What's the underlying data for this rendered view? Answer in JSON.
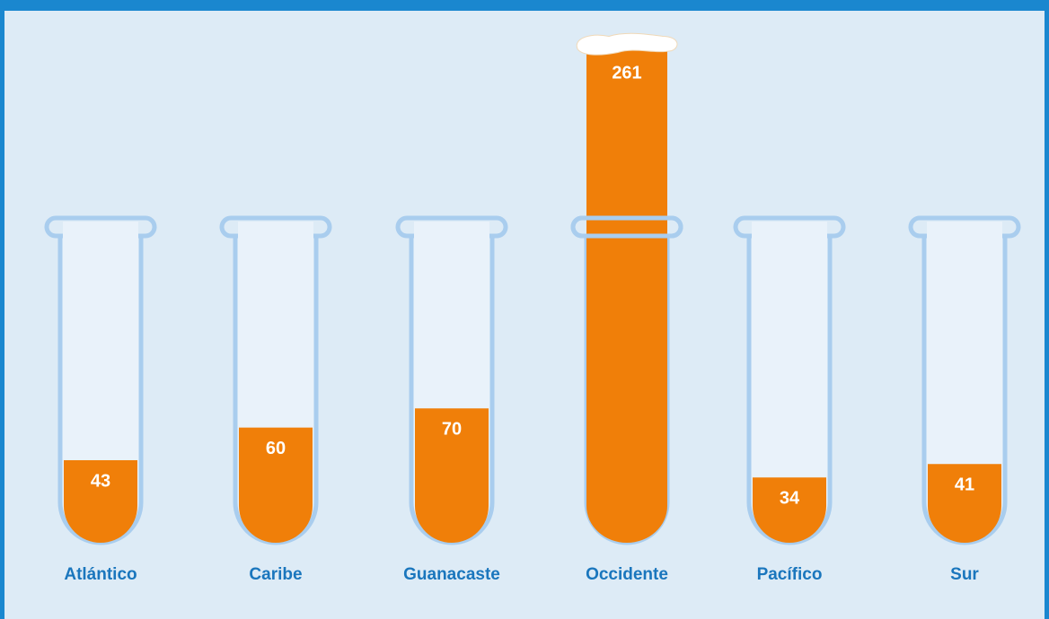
{
  "chart_data": {
    "type": "bar",
    "categories": [
      "Atlántico",
      "Caribe",
      "Guanacaste",
      "Occidente",
      "Pacífico",
      "Sur"
    ],
    "values": [
      43,
      60,
      70,
      261,
      34,
      41
    ],
    "color": "#f07f09"
  }
}
